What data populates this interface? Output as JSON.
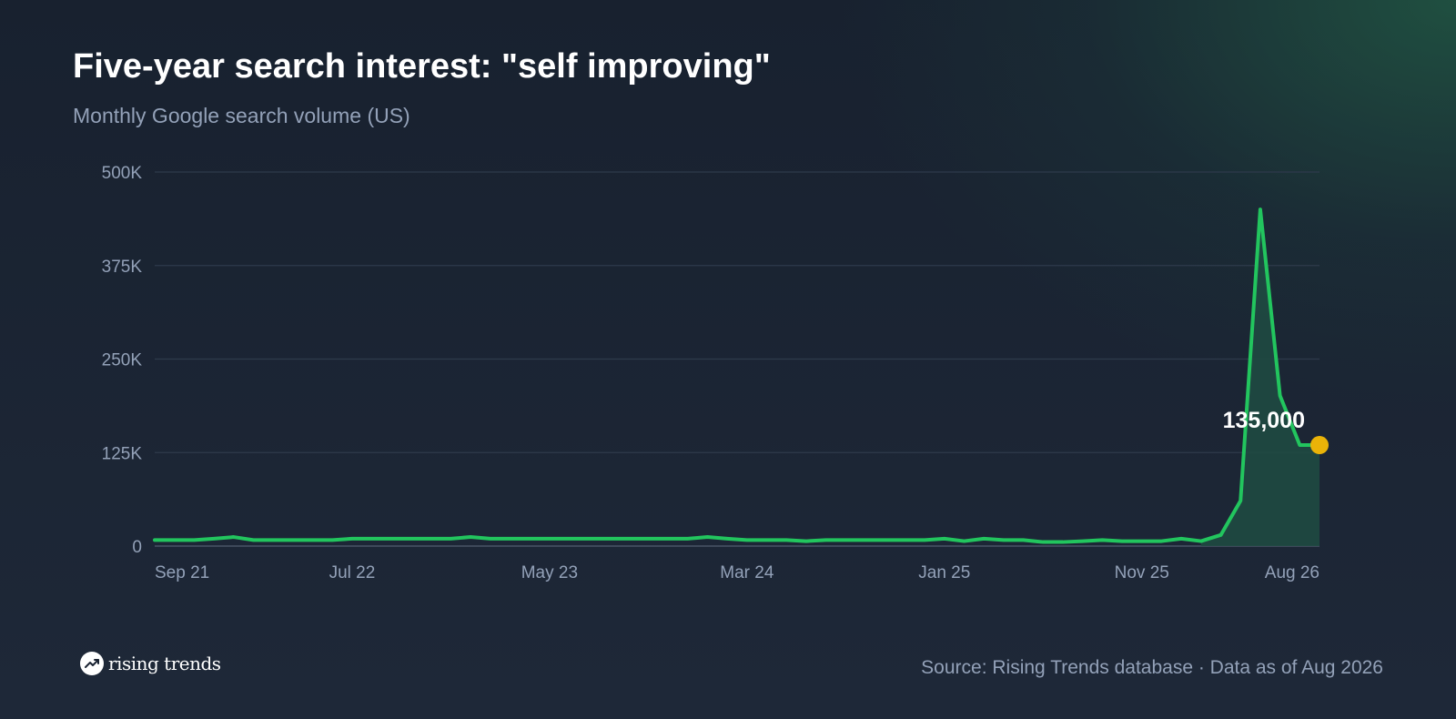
{
  "header": {
    "title": "Five-year search interest: \"self improving\"",
    "subtitle": "Monthly Google search volume (US)"
  },
  "footer": {
    "logo_text": "rising trends",
    "logo_icon": "trending-up-icon",
    "source": "Source: Rising Trends database · Data as of Aug 2026"
  },
  "colors": {
    "line": "#22c55e",
    "area": "#1f4a41",
    "marker": "#eab308",
    "grid": "#2e3a4b",
    "baseline": "#4a5566",
    "muted_text": "#93a1b8"
  },
  "chart_data": {
    "type": "area",
    "title": "Five-year search interest: \"self improving\"",
    "subtitle": "Monthly Google search volume (US)",
    "xlabel": "",
    "ylabel": "",
    "ylim": [
      0,
      500000
    ],
    "y_ticks": [
      0,
      125000,
      250000,
      375000,
      500000
    ],
    "y_tick_labels": [
      "0",
      "125K",
      "250K",
      "375K",
      "500K"
    ],
    "x_tick_labels": [
      "Sep 21",
      "Jul 22",
      "May 23",
      "Mar 24",
      "Jan 25",
      "Nov 25",
      "Aug 26"
    ],
    "x_tick_months": [
      "2021-09",
      "2022-07",
      "2023-05",
      "2024-03",
      "2025-01",
      "2025-11",
      "2026-08"
    ],
    "grid": true,
    "series": [
      {
        "months": [
          "2021-09",
          "2021-10",
          "2021-11",
          "2021-12",
          "2022-01",
          "2022-02",
          "2022-03",
          "2022-04",
          "2022-05",
          "2022-06",
          "2022-07",
          "2022-08",
          "2022-09",
          "2022-10",
          "2022-11",
          "2022-12",
          "2023-01",
          "2023-02",
          "2023-03",
          "2023-04",
          "2023-05",
          "2023-06",
          "2023-07",
          "2023-08",
          "2023-09",
          "2023-10",
          "2023-11",
          "2023-12",
          "2024-01",
          "2024-02",
          "2024-03",
          "2024-04",
          "2024-05",
          "2024-06",
          "2024-07",
          "2024-08",
          "2024-09",
          "2024-10",
          "2024-11",
          "2024-12",
          "2025-01",
          "2025-02",
          "2025-03",
          "2025-04",
          "2025-05",
          "2025-06",
          "2025-07",
          "2025-08",
          "2025-09",
          "2025-10",
          "2025-11",
          "2025-12",
          "2026-01",
          "2026-02",
          "2026-03",
          "2026-04",
          "2026-05",
          "2026-06",
          "2026-07",
          "2026-08"
        ],
        "values": [
          8100,
          8100,
          8100,
          9900,
          12100,
          8100,
          8100,
          8100,
          8100,
          8100,
          9900,
          9900,
          9900,
          9900,
          9900,
          9900,
          12100,
          9900,
          9900,
          9900,
          9900,
          9900,
          9900,
          9900,
          9900,
          9900,
          9900,
          9900,
          12100,
          9900,
          8100,
          8100,
          8100,
          6600,
          8100,
          8100,
          8100,
          8100,
          8100,
          8100,
          9900,
          6600,
          9900,
          8100,
          8100,
          5400,
          5400,
          6600,
          8100,
          6600,
          6600,
          6600,
          9900,
          6600,
          14800,
          60500,
          450000,
          201000,
          135000,
          135000
        ]
      }
    ],
    "annotation": {
      "label": "135,000",
      "month": "2026-08",
      "value": 135000
    }
  }
}
